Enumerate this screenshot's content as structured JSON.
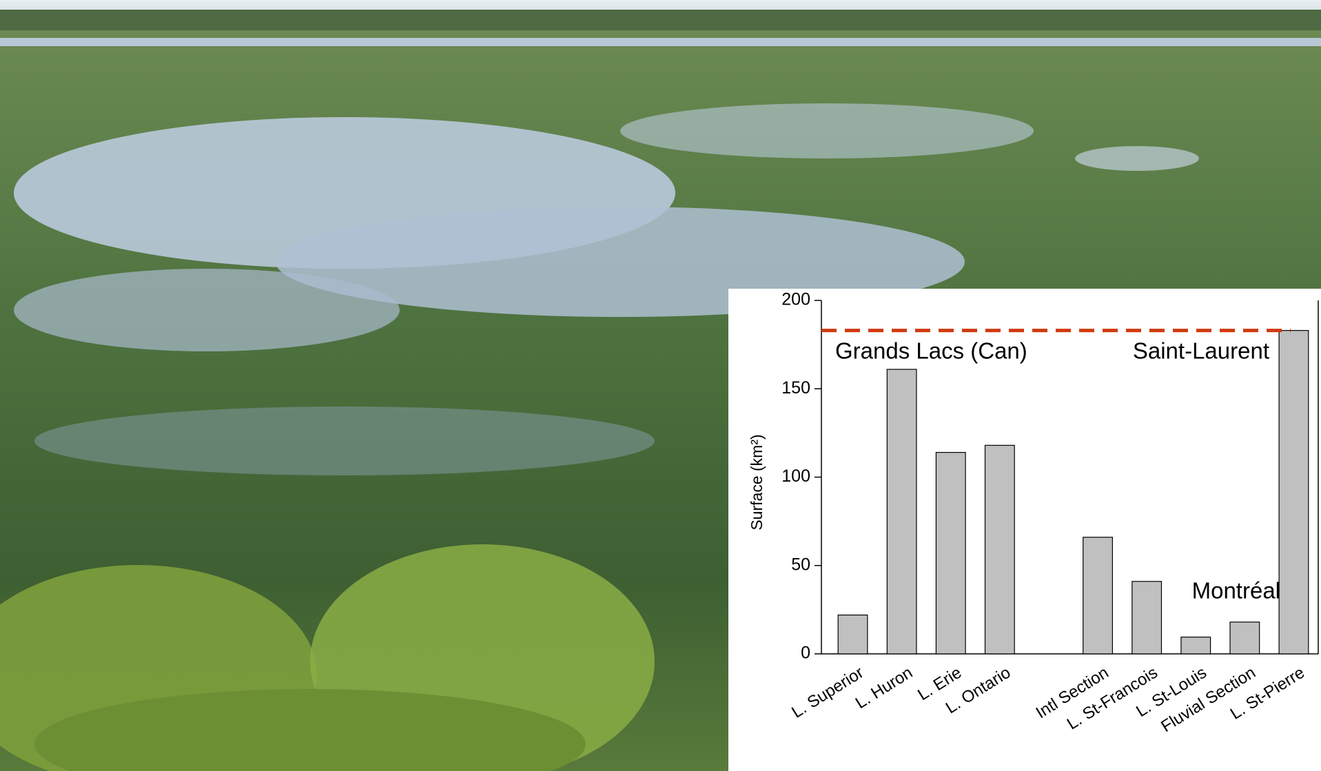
{
  "chart_data": {
    "type": "bar",
    "y_label": "Surface (km²)",
    "categories": [
      "L. Superior",
      "L. Huron",
      "L. Erie",
      "L. Ontario",
      null,
      "Intl Section",
      "L. St-Francois",
      "L. St-Louis",
      "Fluvial Section",
      "L. St-Pierre"
    ],
    "values": [
      22,
      161,
      114,
      118,
      null,
      66,
      41,
      9.5,
      18,
      183
    ],
    "color": "#c0c0c0",
    "ylim": [
      0,
      200
    ],
    "yticks": [
      0,
      50,
      100,
      150,
      200
    ],
    "reference_line": {
      "value": 183,
      "color": "#d03a10"
    },
    "annotations": [
      "Grands Lacs (Can)",
      "Saint-Laurent",
      "Montréal"
    ]
  }
}
